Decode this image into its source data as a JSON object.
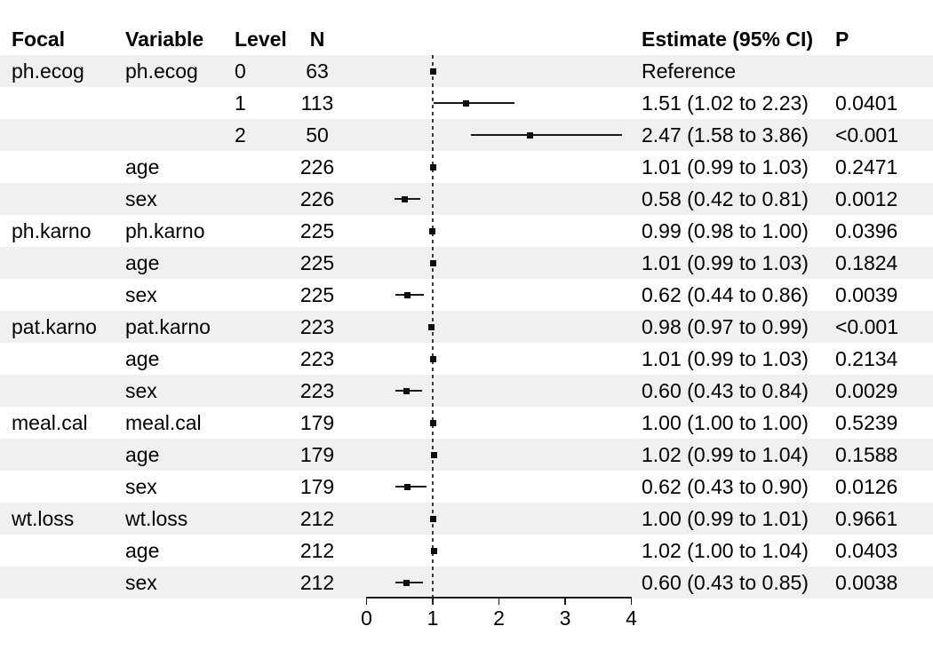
{
  "colors": {
    "background": "#ffffff",
    "band": "#eef1ef",
    "text": "#000000",
    "marker": "#0d0d0d",
    "ci_line": "#1a1a1a",
    "axis": "#1a1a1a",
    "reference_dash": "#3c3c3c"
  },
  "chart_data": {
    "type": "forest",
    "title": "",
    "header": {
      "focal": "Focal",
      "variable": "Variable",
      "level": "Level",
      "n": "N",
      "estimate": "Estimate (95% CI)",
      "p": "P"
    },
    "axis": {
      "xlim": [
        0,
        4
      ],
      "tick_values": [
        0,
        1,
        2,
        3,
        4
      ],
      "tick_labels": [
        "0",
        "1",
        "2",
        "3",
        "4"
      ],
      "reference_line": 1,
      "scale_note": "hazard-ratio style axis, dashed line at 1"
    },
    "rows": [
      {
        "focal": "ph.ecog",
        "variable": "ph.ecog",
        "level": "0",
        "n": "63",
        "estimate": 1.0,
        "low": null,
        "high": null,
        "estimate_label": "Reference",
        "p": ""
      },
      {
        "focal": "",
        "variable": "",
        "level": "1",
        "n": "113",
        "estimate": 1.51,
        "low": 1.02,
        "high": 2.23,
        "estimate_label": "1.51 (1.02 to 2.23)",
        "p": "0.0401"
      },
      {
        "focal": "",
        "variable": "",
        "level": "2",
        "n": "50",
        "estimate": 2.47,
        "low": 1.58,
        "high": 3.86,
        "estimate_label": "2.47 (1.58 to 3.86)",
        "p": "<0.001"
      },
      {
        "focal": "",
        "variable": "age",
        "level": "",
        "n": "226",
        "estimate": 1.01,
        "low": 0.99,
        "high": 1.03,
        "estimate_label": "1.01 (0.99 to 1.03)",
        "p": "0.2471"
      },
      {
        "focal": "",
        "variable": "sex",
        "level": "",
        "n": "226",
        "estimate": 0.58,
        "low": 0.42,
        "high": 0.81,
        "estimate_label": "0.58 (0.42 to 0.81)",
        "p": "0.0012"
      },
      {
        "focal": "ph.karno",
        "variable": "ph.karno",
        "level": "",
        "n": "225",
        "estimate": 0.99,
        "low": 0.98,
        "high": 1.0,
        "estimate_label": "0.99 (0.98 to 1.00)",
        "p": "0.0396"
      },
      {
        "focal": "",
        "variable": "age",
        "level": "",
        "n": "225",
        "estimate": 1.01,
        "low": 0.99,
        "high": 1.03,
        "estimate_label": "1.01 (0.99 to 1.03)",
        "p": "0.1824"
      },
      {
        "focal": "",
        "variable": "sex",
        "level": "",
        "n": "225",
        "estimate": 0.62,
        "low": 0.44,
        "high": 0.86,
        "estimate_label": "0.62 (0.44 to 0.86)",
        "p": "0.0039"
      },
      {
        "focal": "pat.karno",
        "variable": "pat.karno",
        "level": "",
        "n": "223",
        "estimate": 0.98,
        "low": 0.97,
        "high": 0.99,
        "estimate_label": "0.98 (0.97 to 0.99)",
        "p": "<0.001"
      },
      {
        "focal": "",
        "variable": "age",
        "level": "",
        "n": "223",
        "estimate": 1.01,
        "low": 0.99,
        "high": 1.03,
        "estimate_label": "1.01 (0.99 to 1.03)",
        "p": "0.2134"
      },
      {
        "focal": "",
        "variable": "sex",
        "level": "",
        "n": "223",
        "estimate": 0.6,
        "low": 0.43,
        "high": 0.84,
        "estimate_label": "0.60 (0.43 to 0.84)",
        "p": "0.0029"
      },
      {
        "focal": "meal.cal",
        "variable": "meal.cal",
        "level": "",
        "n": "179",
        "estimate": 1.0,
        "low": 1.0,
        "high": 1.0,
        "estimate_label": "1.00 (1.00 to 1.00)",
        "p": "0.5239"
      },
      {
        "focal": "",
        "variable": "age",
        "level": "",
        "n": "179",
        "estimate": 1.02,
        "low": 0.99,
        "high": 1.04,
        "estimate_label": "1.02 (0.99 to 1.04)",
        "p": "0.1588"
      },
      {
        "focal": "",
        "variable": "sex",
        "level": "",
        "n": "179",
        "estimate": 0.62,
        "low": 0.43,
        "high": 0.9,
        "estimate_label": "0.62 (0.43 to 0.90)",
        "p": "0.0126"
      },
      {
        "focal": "wt.loss",
        "variable": "wt.loss",
        "level": "",
        "n": "212",
        "estimate": 1.0,
        "low": 0.99,
        "high": 1.01,
        "estimate_label": "1.00 (0.99 to 1.01)",
        "p": "0.9661"
      },
      {
        "focal": "",
        "variable": "age",
        "level": "",
        "n": "212",
        "estimate": 1.02,
        "low": 1.0,
        "high": 1.04,
        "estimate_label": "1.02 (1.00 to 1.04)",
        "p": "0.0403"
      },
      {
        "focal": "",
        "variable": "sex",
        "level": "",
        "n": "212",
        "estimate": 0.6,
        "low": 0.43,
        "high": 0.85,
        "estimate_label": "0.60 (0.43 to 0.85)",
        "p": "0.0038"
      }
    ]
  }
}
